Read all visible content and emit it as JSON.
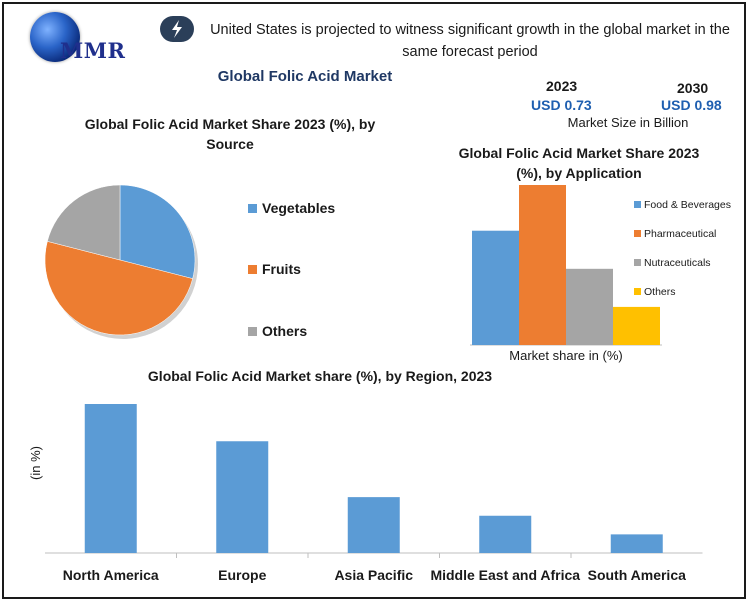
{
  "brand": {
    "logo_text": "MMR"
  },
  "header": {
    "headline": "United States is projected to witness significant growth in the global market in the same forecast period",
    "main_title": "Global Folic Acid Market"
  },
  "market_size": {
    "year_a": "2023",
    "value_a": "USD 0.73",
    "year_b": "2030",
    "value_b": "USD 0.98",
    "caption": "Market Size in Billion"
  },
  "colors": {
    "blue": "#5b9bd5",
    "orange": "#ed7d31",
    "gray": "#a5a5a5",
    "yellow": "#ffc000",
    "accent_navy": "#1f3864"
  },
  "chart_data": [
    {
      "type": "pie",
      "title": "Global Folic Acid Market Share 2023 (%), by Source",
      "categories": [
        "Vegetables",
        "Fruits",
        "Others"
      ],
      "values": [
        29,
        50,
        21
      ],
      "colors": [
        "#5b9bd5",
        "#ed7d31",
        "#a5a5a5"
      ],
      "legend": "right"
    },
    {
      "type": "bar",
      "title": "Global Folic Acid Market Share 2023 (%), by Application",
      "xlabel": "Market share in (%)",
      "series": [
        {
          "name": "Food & Beverages",
          "values": [
            30
          ]
        },
        {
          "name": "Pharmaceutical",
          "values": [
            42
          ]
        },
        {
          "name": "Nutraceuticals",
          "values": [
            20
          ]
        },
        {
          "name": "Others",
          "values": [
            10
          ]
        }
      ],
      "colors": [
        "#5b9bd5",
        "#ed7d31",
        "#a5a5a5",
        "#ffc000"
      ],
      "ylim": [
        0,
        42
      ],
      "legend": "right"
    },
    {
      "type": "bar",
      "title": "Global Folic Acid Market share (%), by Region, 2023",
      "ylabel": "(in %)",
      "categories": [
        "North America",
        "Europe",
        "Asia Pacific",
        "Middle East and Africa",
        "South America"
      ],
      "values": [
        40,
        30,
        15,
        10,
        5
      ],
      "ylim": [
        0,
        40
      ],
      "color": "#5b9bd5"
    }
  ]
}
